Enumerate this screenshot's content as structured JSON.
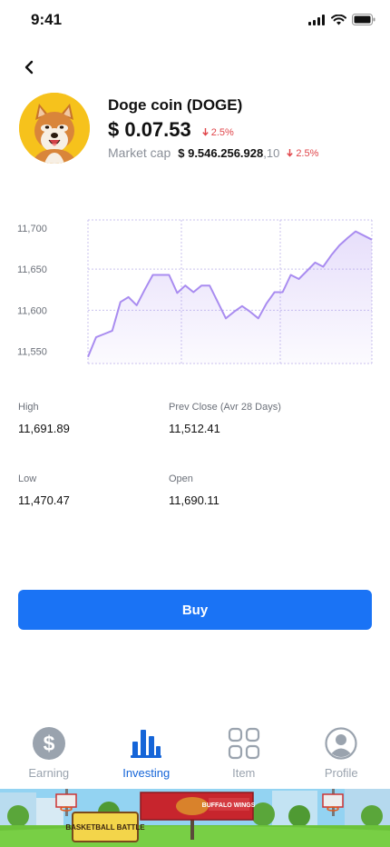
{
  "status": {
    "time": "9:41"
  },
  "coin": {
    "name": "Doge coin (DOGE)",
    "price": "$ 0.07.53",
    "price_change": "2.5%",
    "market_cap_label": "Market cap",
    "market_cap_value": "$ 9.546.256.928",
    "market_cap_decimal": ",10",
    "market_cap_change": "2.5%"
  },
  "chart_data": {
    "type": "area",
    "y_ticks": [
      "11,700",
      "11,650",
      "11,600",
      "11,550"
    ],
    "ylim": [
      11535,
      11710
    ],
    "x": [
      0,
      1,
      2,
      3,
      4,
      5,
      6,
      7,
      8,
      9,
      10,
      11,
      12,
      13,
      14,
      15,
      16,
      17,
      18,
      19,
      20,
      21,
      22,
      23,
      24,
      25,
      26,
      27,
      28,
      29,
      30,
      31,
      32,
      33,
      34,
      35
    ],
    "values": [
      11543,
      11567,
      11571,
      11575,
      11610,
      11616,
      11606,
      11625,
      11643,
      11643,
      11643,
      11621,
      11630,
      11622,
      11630,
      11630,
      11610,
      11590,
      11598,
      11605,
      11598,
      11590,
      11608,
      11622,
      11622,
      11643,
      11638,
      11648,
      11658,
      11653,
      11667,
      11679,
      11688,
      11696,
      11691,
      11686
    ],
    "grid": true,
    "color": "#a98cf0"
  },
  "stats": {
    "high_label": "High",
    "high_value": "11,691.89",
    "prev_label": "Prev Close (Avr 28 Days)",
    "prev_value": "11,512.41",
    "low_label": "Low",
    "low_value": "11,470.47",
    "open_label": "Open",
    "open_value": "11,690.11"
  },
  "buy_label": "Buy",
  "nav": {
    "earning": "Earning",
    "investing": "Investing",
    "item": "Item",
    "profile": "Profile"
  },
  "ad": {
    "game_title": "BASKETBALL BATTLE",
    "sign_text": "BUFFALO WINGS"
  },
  "colors": {
    "accent": "#1a73f5",
    "negative": "#e0454a",
    "nav_active": "#1565d8"
  }
}
